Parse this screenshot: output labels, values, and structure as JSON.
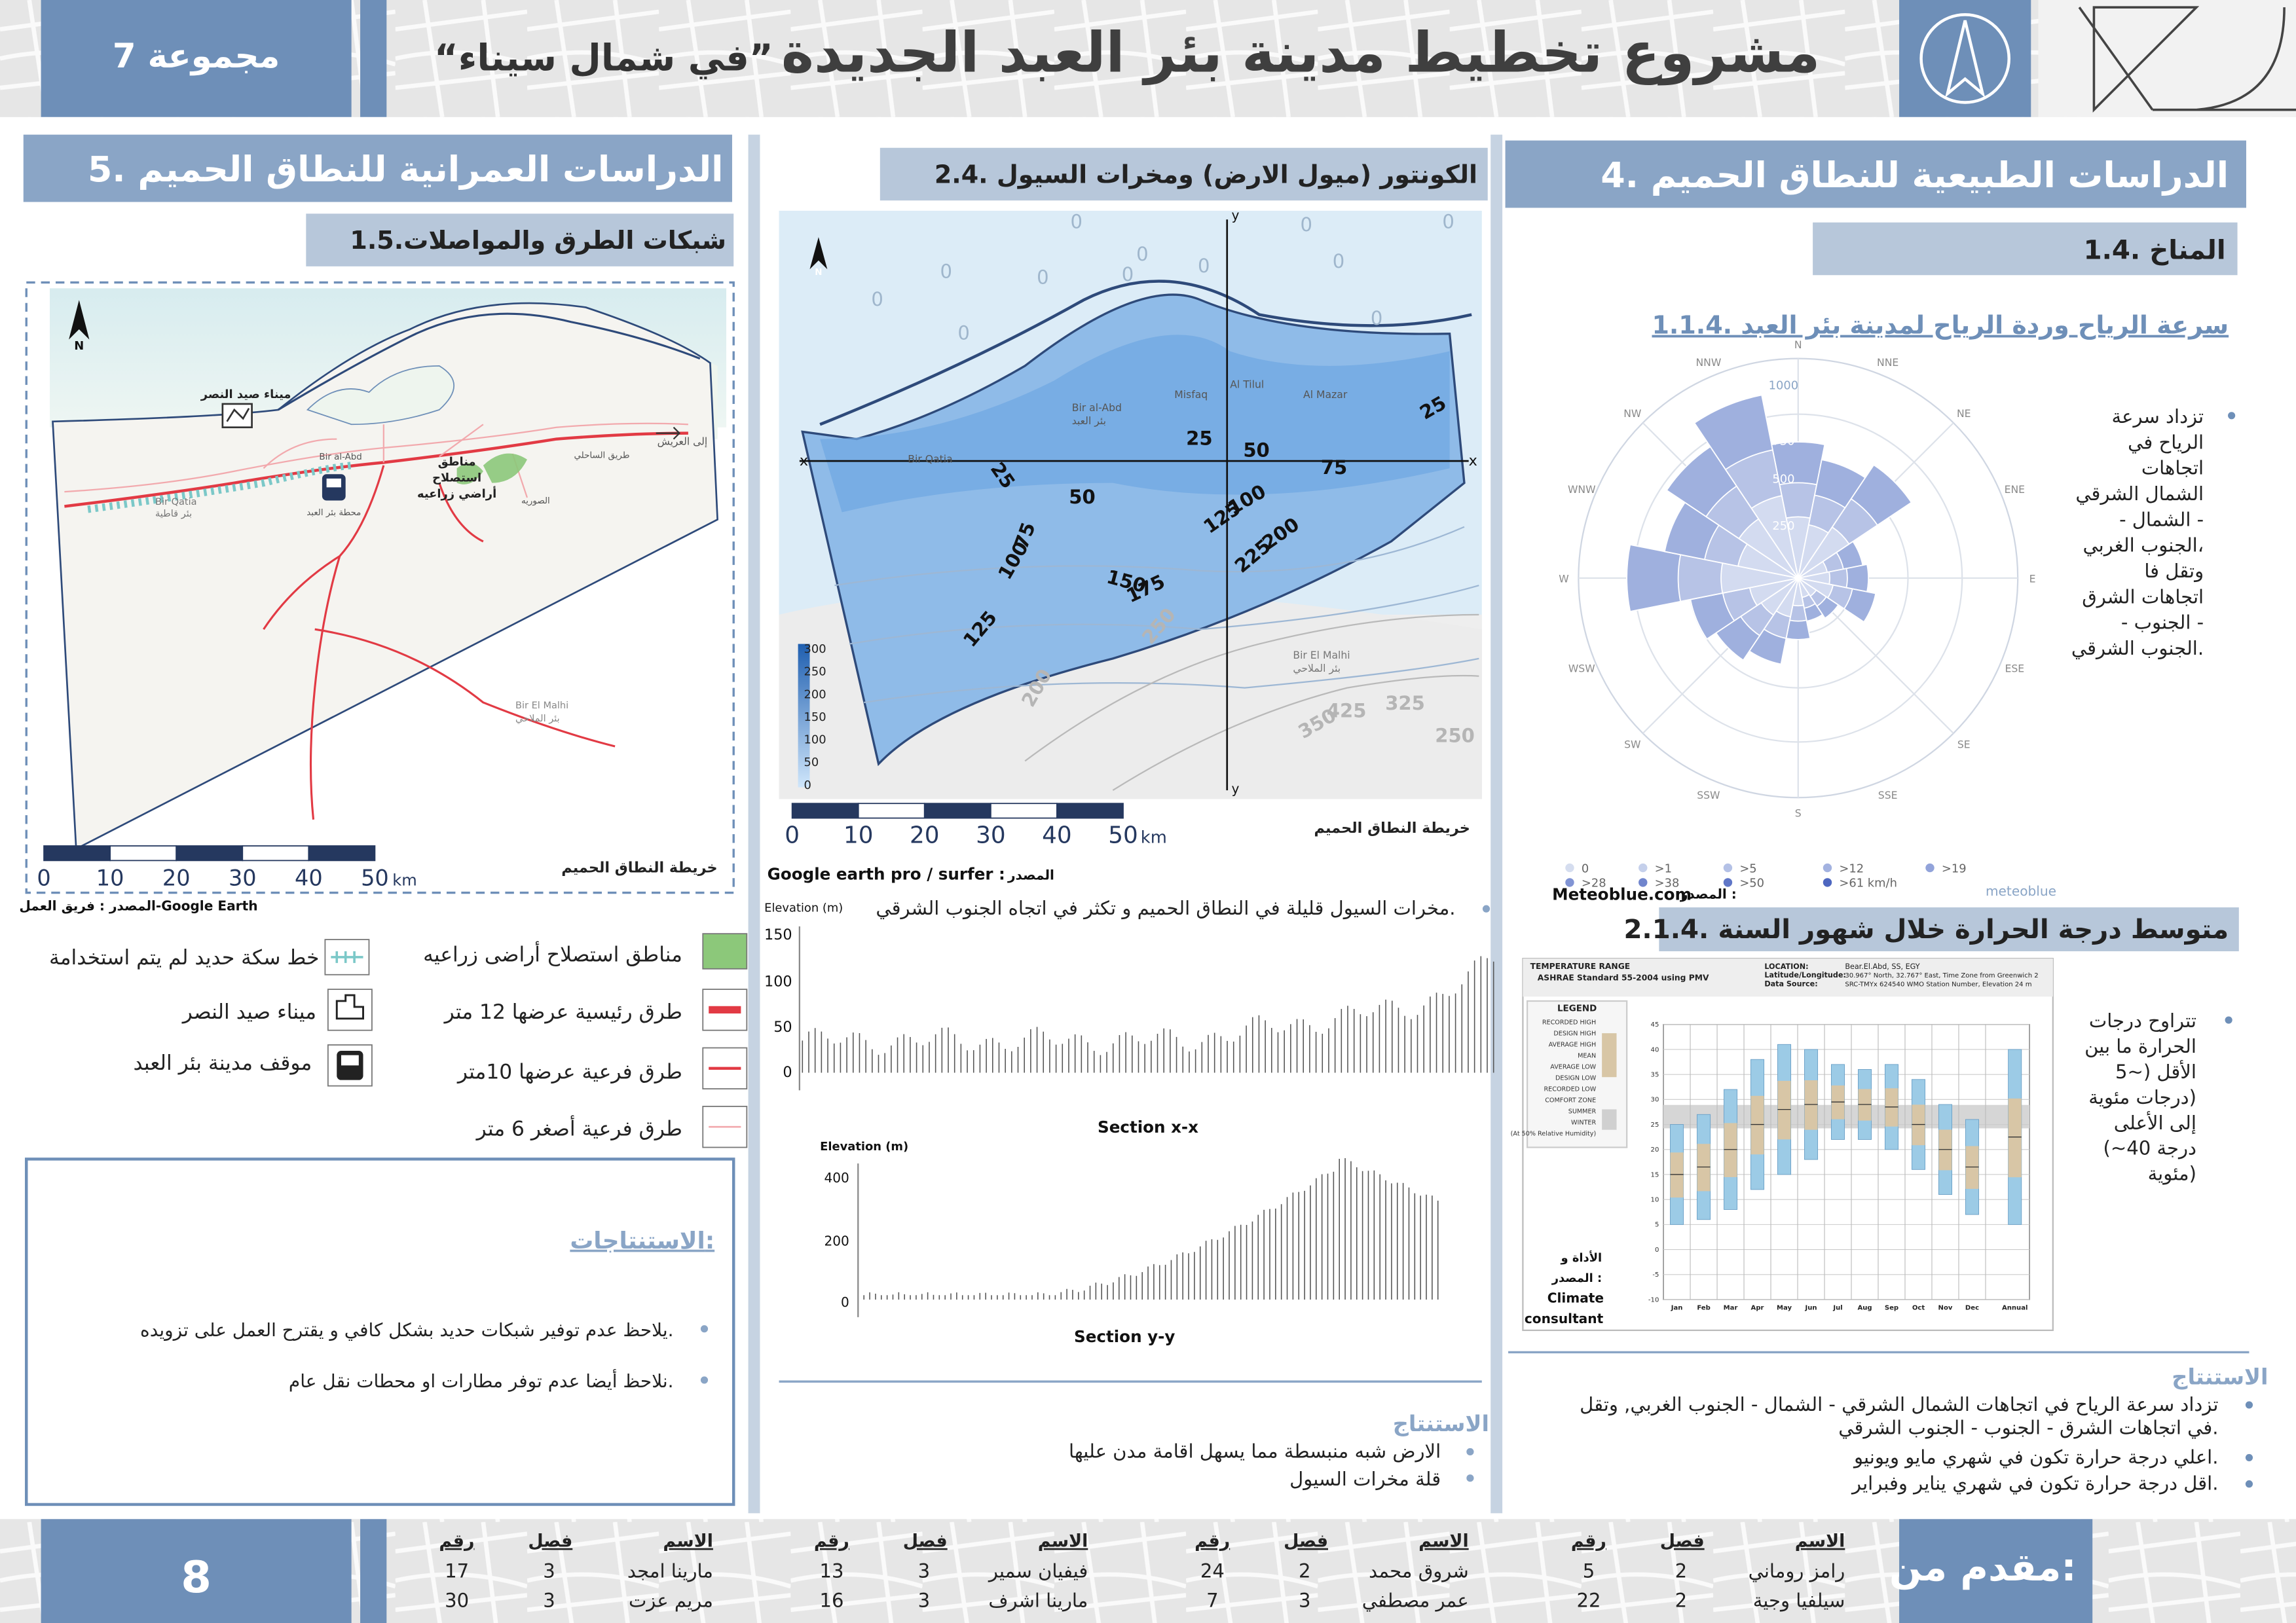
{
  "header": {
    "group": "مجموعة 7",
    "subtitle": "“في شمال سيناء”",
    "title": "مشروع تخطيط مدينة بئر العبد الجديدة"
  },
  "right_section": {
    "title": "4. الدراسات الطبيعية للنطاق الحميم",
    "subtitle": "1.4. المناخ",
    "wind_title": "1.1.4. سرعة الرياح وردة الرياح لمدينة بئر العبد",
    "wind_text": [
      "تزداد سرعة",
      "الرياح في",
      "اتجاهات",
      "الشمال الشرقي",
      "- الشمال -",
      "الجنوب الغربي،",
      "وتقل فا",
      "اتجاهات الشرق",
      "- الجنوب -",
      "الجنوب الشرقي."
    ],
    "compass": [
      "N",
      "NNE",
      "NE",
      "ENE",
      "E",
      "ESE",
      "SE",
      "SSE",
      "S",
      "SSW",
      "SW",
      "WSW",
      "W",
      "WNW",
      "NW",
      "NNW"
    ],
    "rose_rings": [
      "1000",
      "750",
      "500",
      "250"
    ],
    "wind_legend": [
      "0",
      ">1",
      ">5",
      ">12",
      ">19",
      ">28",
      ">38",
      ">50",
      ">61 km/h"
    ],
    "wind_source_label": "المصدر :",
    "wind_source": "Meteoblue.com",
    "meteoblue": "meteoblue",
    "temp_title": "2.1.4. متوسط درجة الحرارة خلال شهور السنة",
    "temp_text": [
      "تتراوح درجات",
      "الحرارة ما بين",
      "الأقل (~5",
      "درجات مئوية)",
      "إلى الأعلى",
      "(~40 درجة",
      "مئوية)"
    ],
    "temp_chart": {
      "header_left": [
        "TEMPERATURE RANGE",
        "ASHRAE Standard 55-2004 using PMV"
      ],
      "header_right": [
        "LOCATION:",
        "Latitude/Longitude:",
        "Data Source:"
      ],
      "header_values": [
        "Bear.El.Abd, SS, EGY",
        "30.967° North, 32.767° East, Time Zone from Greenwich 2",
        "SRC-TMYx     624540 WMO Station Number, Elevation 24 m"
      ],
      "legend_title": "LEGEND",
      "legend_items": [
        "RECORDED HIGH",
        "DESIGN HIGH",
        "AVERAGE HIGH",
        "MEAN",
        "AVERAGE LOW",
        "DESIGN LOW",
        "RECORDED LOW",
        "COMFORT ZONE",
        "SUMMER",
        "WINTER",
        "(At 50% Relative Humidity)"
      ],
      "tool_label": [
        "الأداة و",
        "المصدر :"
      ],
      "tool": [
        "Climate",
        "consultant"
      ],
      "months": [
        "Jan",
        "Feb",
        "Mar",
        "Apr",
        "May",
        "Jun",
        "Jul",
        "Aug",
        "Sep",
        "Oct",
        "Nov",
        "Dec",
        "Annual"
      ],
      "y_ticks": [
        "45",
        "40",
        "35",
        "30",
        "25",
        "20",
        "15",
        "10",
        "5",
        "0",
        "-5",
        "-10"
      ]
    },
    "conclusion_title": "الاستنتاج",
    "conclusions": [
      "تزداد سرعة الرياح في اتجاهات الشمال الشرقي - الشمال - الجنوب الغربي, وتقل",
      "في اتجاهات الشرق - الجنوب - الجنوب الشرقي.",
      "اعلي درجة حرارة تكون في شهري مايو ويونيو.",
      "اقل درجة حرارة تكون في شهري يناير وفبراير."
    ]
  },
  "middle_section": {
    "title": "2.4. الكونتور (ميول الارض) ومخرات السيول",
    "contours": [
      "25",
      "25",
      "50",
      "50",
      "75",
      "25",
      "100",
      "125",
      "200",
      "225",
      "75",
      "100",
      "150",
      "175",
      "125",
      "250",
      "200",
      "350",
      "425",
      "325",
      "250"
    ],
    "zeros": [
      "0",
      "0",
      "0",
      "0",
      "0",
      "0",
      "0",
      "0",
      "0",
      "0",
      "0",
      "0"
    ],
    "place_names": [
      "Bir al-Abd",
      "بئر العبد",
      "Misfaq",
      "Al Tilul",
      "Al Mazar",
      "Bir Qatia",
      "Bir El Malhi",
      "بئر الملاحي"
    ],
    "elev_legend": [
      "300",
      "250",
      "200",
      "150",
      "100",
      "50",
      "0"
    ],
    "axis_labels": [
      "x",
      "x",
      "y",
      "y"
    ],
    "map_caption": "خريطة النطاق الحميم",
    "source": "Google earth pro / surfer :",
    "source_label": "المصدر",
    "scale_labels": [
      "0",
      "10",
      "20",
      "30",
      "40",
      "50"
    ],
    "scale_unit": "km",
    "floods_text": "مخرات السيول قليلة في النطاق الحميم و تكثر في اتجاه الجنوب الشرقي.",
    "section_x": {
      "ylabel": "Elevation (m)",
      "y_ticks": [
        "150",
        "100",
        "50",
        "0"
      ],
      "title": "Section x-x"
    },
    "section_y": {
      "ylabel": "Elevation (m)",
      "y_ticks": [
        "400",
        "200",
        "0"
      ],
      "title": "Section y-y"
    },
    "conclusion_title": "الاستنتاج",
    "conclusions": [
      "الارض شبه منبسطة مما يسهل اقامة مدن عليها",
      "قلة مخرات السيول"
    ]
  },
  "left_section": {
    "title": "5. الدراسات العمرانية  للنطاق الحميم",
    "subtitle": "1.5.شبكات الطرق والمواصلات",
    "map_labels": [
      "ميناء صيد النصر",
      "مناطق",
      "استصلاح",
      "أراضي زراعيه",
      "محطة بئر العبد",
      "إلى العريش",
      "Bir Qatia",
      "بئر قاطية",
      "Bir El Malhi",
      "بئر الملاحي",
      "Bir al-Abd",
      "طريق الساحلي",
      "الصوريه"
    ],
    "map_caption": "خريطة النطاق الحميم",
    "source": "المصدر : فريق العمل-Google Earth",
    "scale_labels": [
      "0",
      "10",
      "20",
      "30",
      "40",
      "50"
    ],
    "scale_unit": "km",
    "legend": [
      {
        "label": "مناطق استصلاح أراضى زراعيه",
        "icon": "green-area"
      },
      {
        "label": "خط سكة حديد لم يتم استخدامة",
        "icon": "railway-line"
      },
      {
        "label": "طرق رئيسية عرضها 12 متر",
        "icon": "main-road"
      },
      {
        "label": "ميناء صيد النصر",
        "icon": "port"
      },
      {
        "label": "طرق فرعية عرضها 10متر",
        "icon": "secondary-road"
      },
      {
        "label": "موقف مدينة بئر العبد",
        "icon": "bus"
      },
      {
        "label": "طرق فرعية أصغر 6 متر",
        "icon": "minor-road"
      }
    ],
    "conclusion_title": "الاستنتاجات:",
    "conclusions": [
      "يلاحظ عدم توفير شبكات حديد بشكل كافي و يقترح العمل على تزويده.",
      "نلاحظ أيضا عدم توفر مطارات او محطات نقل عام."
    ]
  },
  "footer": {
    "page": "8",
    "presented_by": "مقدم من:",
    "headers": [
      "الاسم",
      "فصل",
      "رقم"
    ],
    "groups": [
      [
        [
          "رامز روماني",
          "2",
          "5"
        ],
        [
          "سيلفيا وجية",
          "2",
          "22"
        ]
      ],
      [
        [
          "شروق محمد",
          "2",
          "24"
        ],
        [
          "عمر مصطفي",
          "3",
          "7"
        ]
      ],
      [
        [
          "فيفيان سمير",
          "3",
          "13"
        ],
        [
          "مارينا اشرف",
          "3",
          "16"
        ]
      ],
      [
        [
          "مارينا امجد",
          "3",
          "17"
        ],
        [
          "مريم عزت",
          "3",
          "30"
        ]
      ]
    ]
  },
  "colors": {
    "header_blue": "#6e8fb8",
    "title_bar": "#8aa5c6",
    "subtitle_bar": "#b7c7da",
    "dark_navy": "#25385f",
    "road_red": "#e23a44",
    "green": "#8cc87a"
  }
}
